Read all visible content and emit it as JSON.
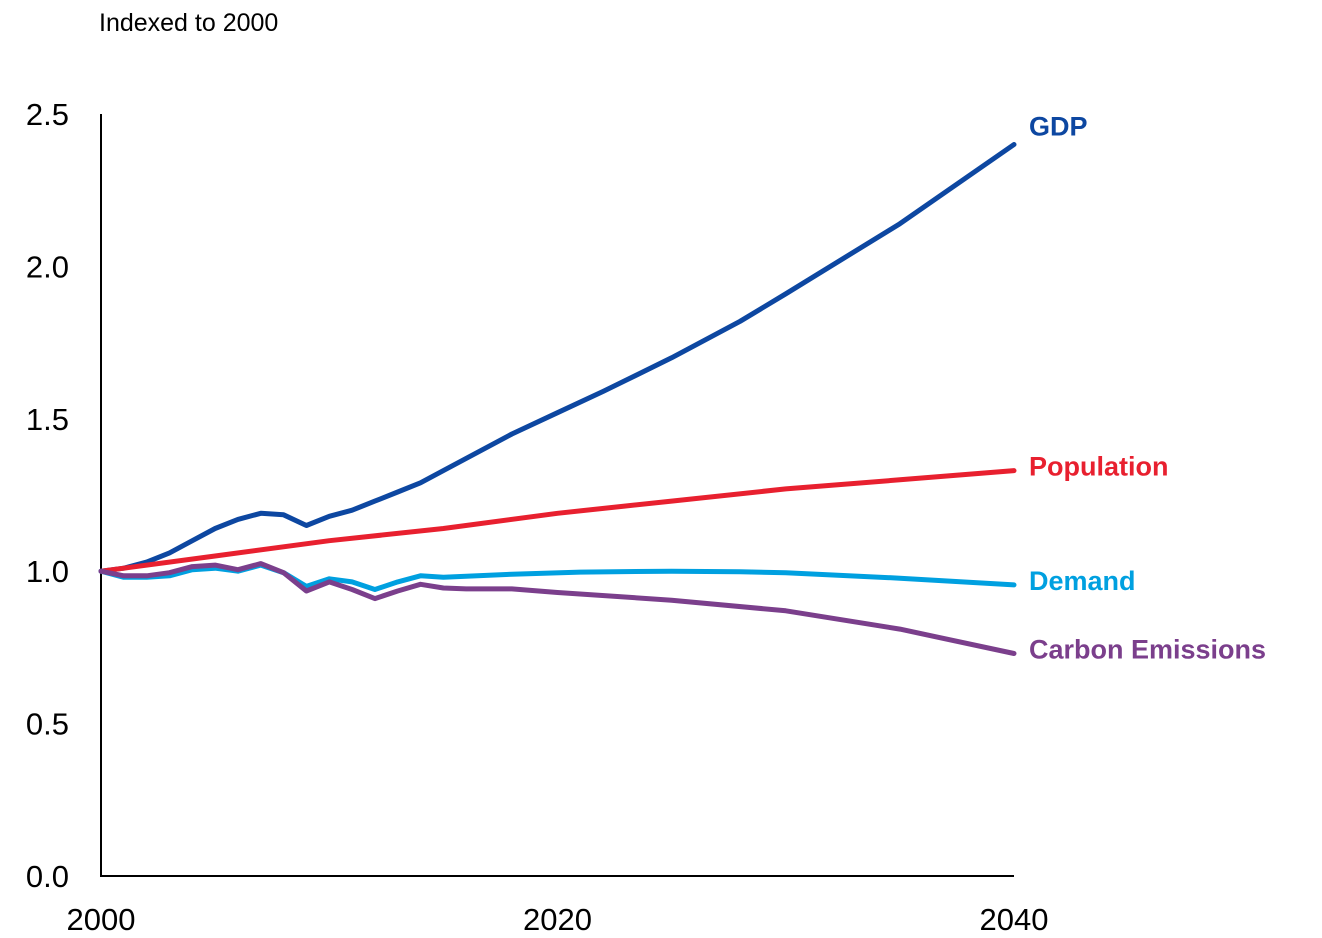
{
  "chart_data": {
    "type": "line",
    "subtitle": "Indexed to 2000",
    "ylim": [
      0,
      2.5
    ],
    "xlim": [
      2000,
      2040
    ],
    "yticks": [
      "0.0",
      "0.5",
      "1.0",
      "1.5",
      "2.0",
      "2.5"
    ],
    "xticks": [
      "2000",
      "2020",
      "2040"
    ],
    "series": [
      {
        "name": "GDP",
        "color": "#0d47a1",
        "x": [
          2000,
          2001,
          2002,
          2003,
          2004,
          2005,
          2006,
          2007,
          2008,
          2009,
          2010,
          2011,
          2012,
          2013,
          2014,
          2015,
          2018,
          2020,
          2022,
          2025,
          2028,
          2030,
          2035,
          2040
        ],
        "y": [
          1.0,
          1.01,
          1.03,
          1.06,
          1.1,
          1.14,
          1.17,
          1.19,
          1.185,
          1.15,
          1.18,
          1.2,
          1.23,
          1.26,
          1.29,
          1.33,
          1.45,
          1.52,
          1.59,
          1.7,
          1.82,
          1.91,
          2.14,
          2.4
        ]
      },
      {
        "name": "Population",
        "color": "#e8202f",
        "x": [
          2000,
          2005,
          2010,
          2015,
          2020,
          2025,
          2030,
          2035,
          2040
        ],
        "y": [
          1.0,
          1.05,
          1.1,
          1.14,
          1.19,
          1.23,
          1.27,
          1.3,
          1.33
        ]
      },
      {
        "name": "Demand",
        "color": "#00a0e0",
        "x": [
          2000,
          2001,
          2002,
          2003,
          2004,
          2005,
          2006,
          2007,
          2008,
          2009,
          2010,
          2011,
          2012,
          2013,
          2014,
          2015,
          2018,
          2021,
          2025,
          2028,
          2030,
          2035,
          2040
        ],
        "y": [
          1.0,
          0.98,
          0.98,
          0.985,
          1.005,
          1.01,
          1.0,
          1.02,
          0.995,
          0.95,
          0.975,
          0.965,
          0.94,
          0.965,
          0.985,
          0.98,
          0.99,
          0.997,
          1.0,
          0.998,
          0.995,
          0.977,
          0.955
        ]
      },
      {
        "name": "Carbon Emissions",
        "color": "#7b3f8c",
        "x": [
          2000,
          2001,
          2002,
          2003,
          2004,
          2005,
          2006,
          2007,
          2008,
          2009,
          2010,
          2011,
          2012,
          2013,
          2014,
          2015,
          2016,
          2018,
          2020,
          2025,
          2030,
          2035,
          2040
        ],
        "y": [
          1.0,
          0.985,
          0.985,
          0.995,
          1.015,
          1.02,
          1.005,
          1.025,
          0.995,
          0.935,
          0.965,
          0.94,
          0.91,
          0.935,
          0.957,
          0.945,
          0.942,
          0.942,
          0.93,
          0.905,
          0.87,
          0.81,
          0.73
        ]
      }
    ]
  }
}
